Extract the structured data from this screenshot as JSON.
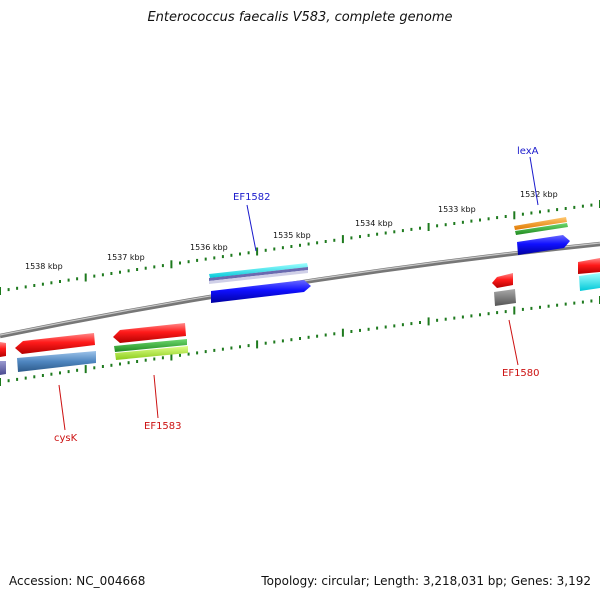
{
  "title": "Enterococcus faecalis V583, complete genome",
  "footer": {
    "accession": "Accession: NC_004668",
    "topology": "Topology: circular; Length: 3,218,031 bp; Genes: 3,192"
  },
  "scale_labels": [
    "1538 kbp",
    "1537 kbp",
    "1536 kbp",
    "1535 kbp",
    "1534 kbp",
    "1533 kbp",
    "1532 kbp"
  ],
  "gene_labels": {
    "forward": [
      "EF1582",
      "lexA"
    ],
    "reverse": [
      "cysK",
      "EF1583",
      "EF1580"
    ]
  },
  "colors": {
    "backbone": "#888888",
    "tick": "#1e7a1e",
    "forward_label": "#1a1acc",
    "reverse_label": "#cc1111"
  }
}
